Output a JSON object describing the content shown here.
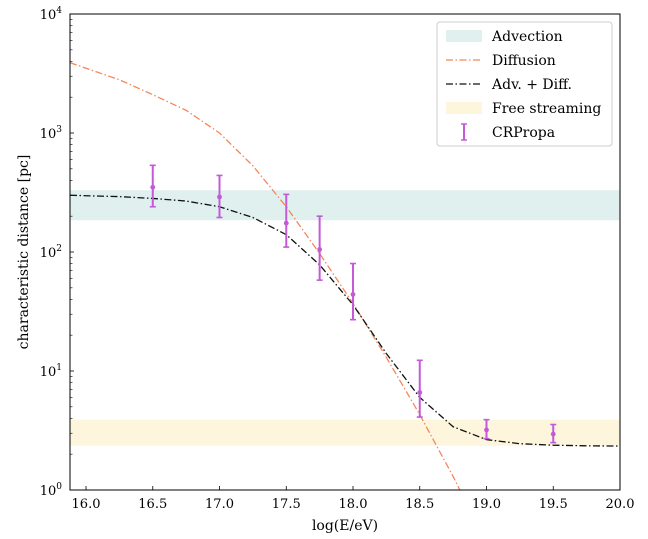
{
  "chart_data": {
    "type": "line",
    "xlabel": "log(E/eV)",
    "ylabel": "characteristic distance [pc]",
    "xlim": [
      15.88,
      20.0
    ],
    "ylim": [
      1,
      10000
    ],
    "yscale": "log",
    "grid": false,
    "legend_position": "top-right",
    "x_ticks": [
      16.0,
      16.5,
      17.0,
      17.5,
      18.0,
      18.5,
      19.0,
      19.5,
      20.0
    ],
    "x_tick_labels": [
      "16.0",
      "16.5",
      "17.0",
      "17.5",
      "18.0",
      "18.5",
      "19.0",
      "19.5",
      "20.0"
    ],
    "y_ticks": [
      1,
      10,
      100,
      1000,
      10000
    ],
    "y_tick_labels": [
      {
        "base": "10",
        "exp": "0"
      },
      {
        "base": "10",
        "exp": "1"
      },
      {
        "base": "10",
        "exp": "2"
      },
      {
        "base": "10",
        "exp": "3"
      },
      {
        "base": "10",
        "exp": "4"
      }
    ],
    "bands": [
      {
        "name": "Advection",
        "y_low": 185,
        "y_high": 330,
        "color": "#dff0ef"
      },
      {
        "name": "Free streaming",
        "y_low": 2.35,
        "y_high": 3.9,
        "color": "#fdf6dd"
      }
    ],
    "lines": [
      {
        "name": "Diffusion",
        "color": "#f4875a",
        "dash": "dashdot",
        "x": [
          15.88,
          16.0,
          16.25,
          16.5,
          16.75,
          17.0,
          17.25,
          17.5,
          17.75,
          18.0,
          18.25,
          18.5,
          18.75,
          18.8
        ],
        "y": [
          3900,
          3500,
          2800,
          2100,
          1550,
          1000,
          530,
          240,
          97,
          37,
          13,
          4.3,
          1.3,
          1.0
        ]
      },
      {
        "name": "Adv. + Diff.",
        "color": "#111111",
        "dash": "dashdot",
        "x": [
          15.88,
          16.0,
          16.25,
          16.5,
          16.75,
          17.0,
          17.25,
          17.5,
          17.75,
          18.0,
          18.25,
          18.5,
          18.75,
          19.0,
          19.25,
          19.5,
          19.75,
          20.0
        ],
        "y": [
          300,
          297,
          292,
          282,
          268,
          240,
          195,
          140,
          78,
          36,
          14,
          6.0,
          3.4,
          2.65,
          2.45,
          2.38,
          2.35,
          2.34
        ]
      }
    ],
    "series": [
      {
        "name": "CRPropa",
        "color": "#c45ad8",
        "x": [
          16.5,
          17.0,
          17.5,
          17.75,
          18.0,
          18.5,
          19.0,
          19.5
        ],
        "y": [
          350,
          290,
          175,
          105,
          44,
          6.6,
          3.2,
          2.95
        ],
        "y_low": [
          240,
          195,
          110,
          58,
          27,
          4.1,
          2.7,
          2.5
        ],
        "y_high": [
          535,
          440,
          305,
          200,
          80,
          12.3,
          3.9,
          3.55
        ]
      }
    ],
    "legend": [
      "Advection",
      "Diffusion",
      "Adv. + Diff.",
      "Free streaming",
      "CRPropa"
    ]
  }
}
